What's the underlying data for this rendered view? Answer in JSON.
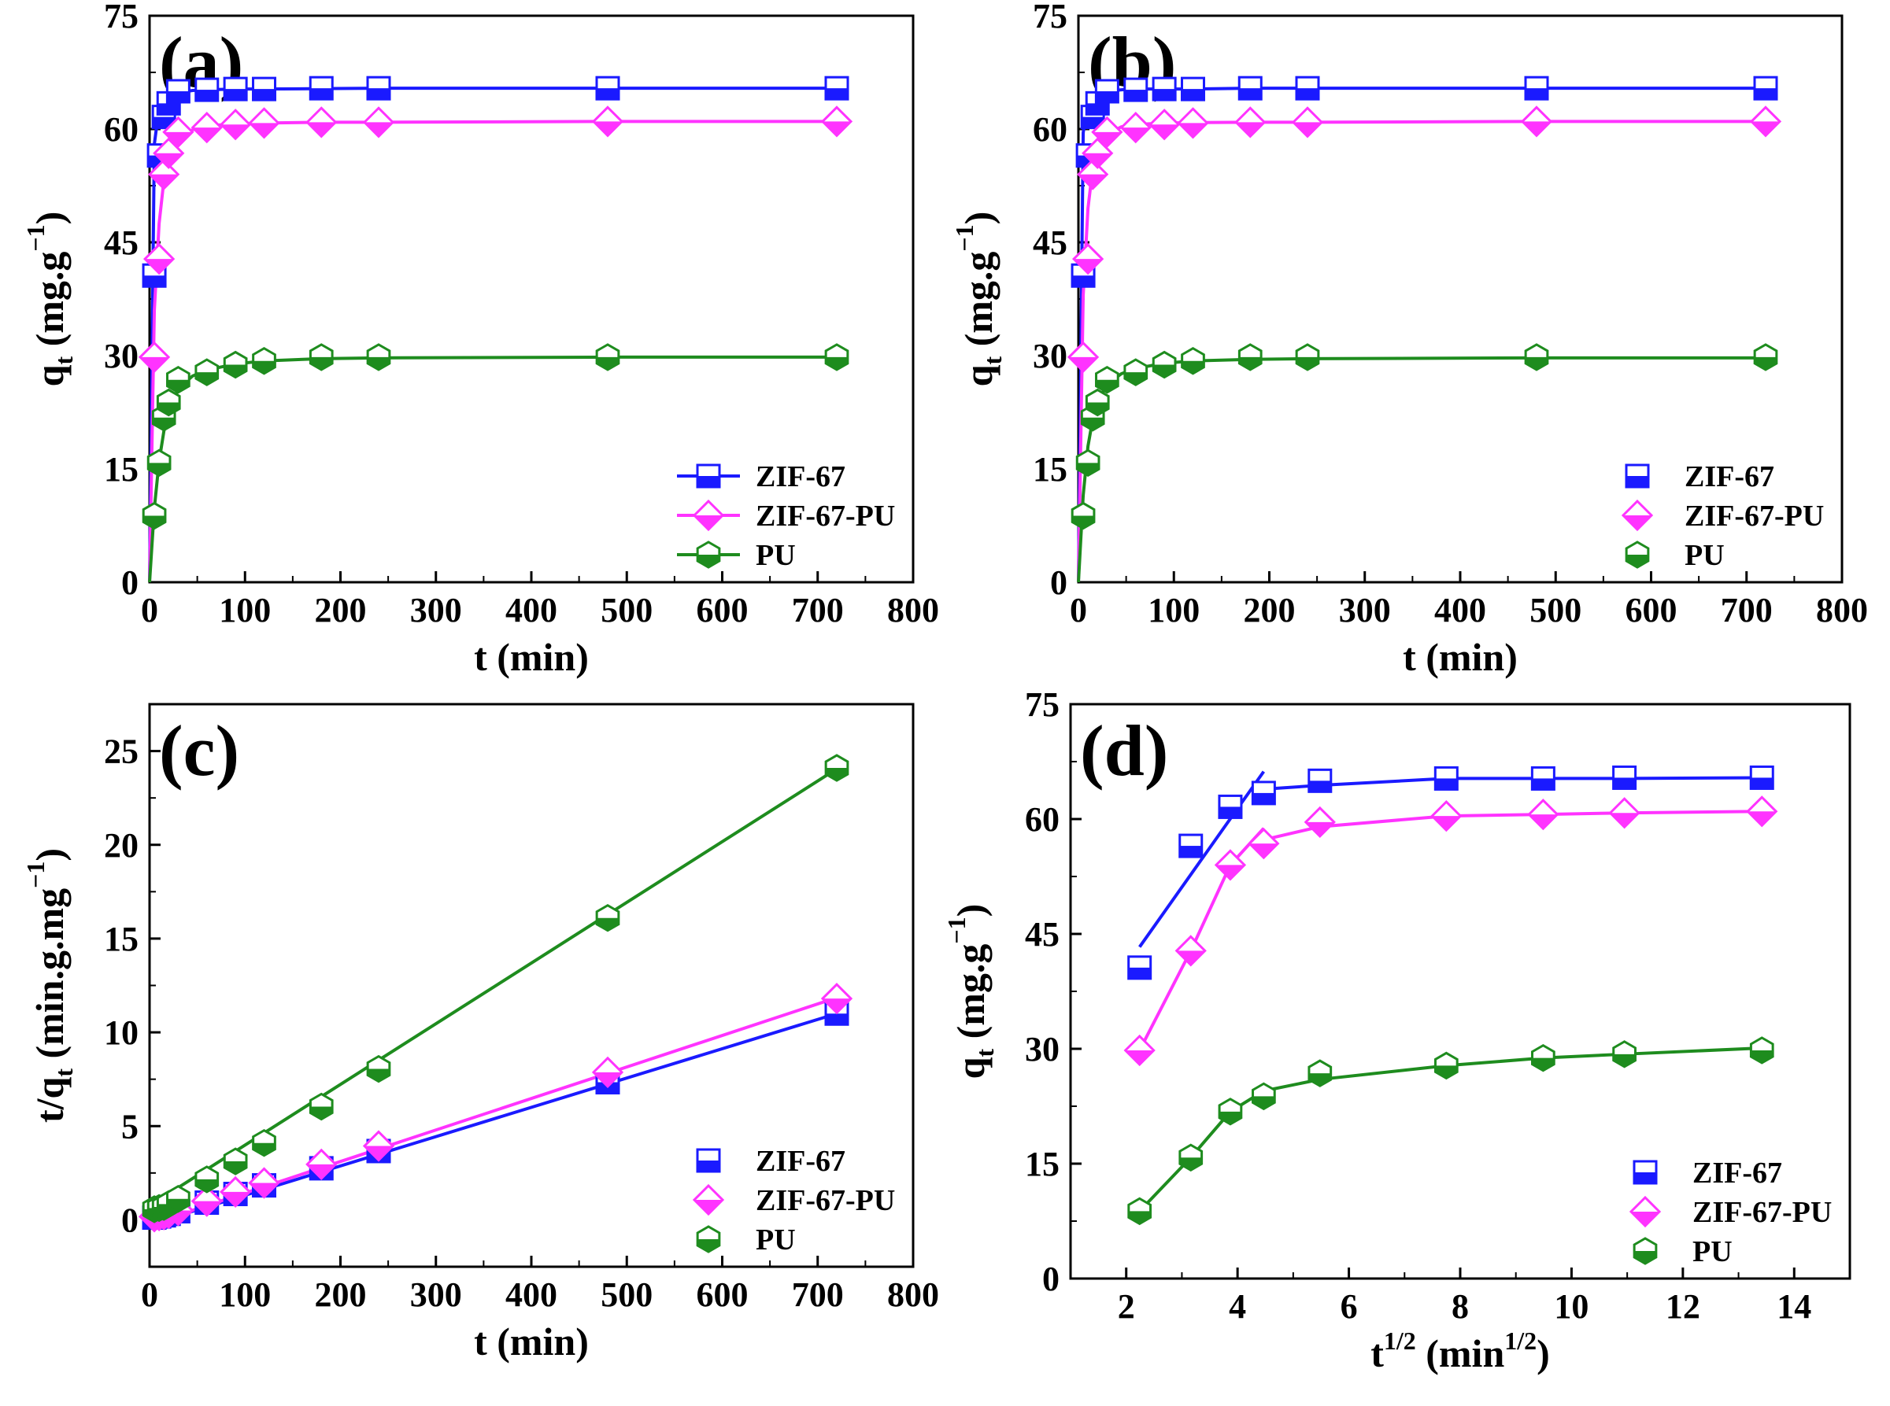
{
  "colors": {
    "ZIF-67": "#1a1aff",
    "ZIF-67-PU": "#ff33ff",
    "PU": "#1e8c1e"
  },
  "chart_data": [
    {
      "type": "line",
      "panel": "(a)",
      "xlabel": "t (min)",
      "ylabel": "q",
      "ylabel_sub": "t",
      "ylabel_unit": "(mg.g",
      "ylabel_sup": "−1",
      "ylabel_close": ")",
      "xlim": [
        0,
        800
      ],
      "ylim": [
        0,
        75
      ],
      "xticks": [
        0,
        100,
        200,
        300,
        400,
        500,
        600,
        700,
        800
      ],
      "xtick_labels": [
        "0",
        "100",
        "200",
        "300",
        "400",
        "500",
        "600",
        "700",
        "800"
      ],
      "yticks": [
        0,
        15,
        30,
        45,
        60,
        75
      ],
      "ytick_labels": [
        "0",
        "15",
        "30",
        "45",
        "60",
        "75"
      ],
      "legend": "bottom-right",
      "legend_lines": true,
      "series": [
        {
          "name": "ZIF-67",
          "marker": "square",
          "x": [
            5,
            10,
            15,
            20,
            30,
            60,
            90,
            120,
            180,
            240,
            480,
            720
          ],
          "y": [
            40.6,
            56.5,
            61.6,
            63.4,
            65.0,
            65.2,
            65.3,
            65.3,
            65.4,
            65.4,
            65.4,
            65.4
          ],
          "fit_x": [
            0,
            5,
            10,
            15,
            20,
            30,
            45,
            60,
            90,
            120,
            180,
            240,
            480,
            720
          ],
          "fit_y": [
            0,
            58.0,
            62.8,
            63.9,
            64.4,
            64.8,
            65.1,
            65.2,
            65.3,
            65.3,
            65.35,
            65.4,
            65.4,
            65.4
          ]
        },
        {
          "name": "ZIF-67-PU",
          "marker": "diamond",
          "x": [
            5,
            10,
            15,
            20,
            30,
            60,
            90,
            120,
            180,
            240,
            480,
            720
          ],
          "y": [
            29.8,
            42.8,
            54.0,
            56.8,
            59.6,
            60.2,
            60.6,
            60.8,
            60.9,
            60.9,
            61.0,
            61.0
          ],
          "fit_x": [
            0,
            5,
            10,
            15,
            20,
            30,
            45,
            60,
            90,
            120,
            180,
            240,
            480,
            720
          ],
          "fit_y": [
            0,
            36.0,
            47.5,
            53.2,
            56.2,
            58.7,
            59.9,
            60.4,
            60.7,
            60.8,
            60.9,
            60.9,
            61.0,
            61.0
          ]
        },
        {
          "name": "PU",
          "marker": "hexagon",
          "x": [
            5,
            10,
            15,
            20,
            30,
            60,
            90,
            120,
            180,
            240,
            480,
            720
          ],
          "y": [
            8.8,
            15.8,
            21.8,
            23.8,
            26.8,
            27.8,
            28.8,
            29.3,
            29.8,
            29.8,
            29.8,
            29.8
          ],
          "fit_x": [
            0,
            5,
            10,
            15,
            20,
            30,
            45,
            60,
            90,
            120,
            180,
            240,
            480,
            720
          ],
          "fit_y": [
            0,
            9.8,
            16.0,
            20.0,
            22.6,
            25.6,
            27.3,
            28.1,
            28.9,
            29.3,
            29.6,
            29.7,
            29.8,
            29.8
          ]
        }
      ]
    },
    {
      "type": "line",
      "panel": "(b)",
      "xlabel": "t (min)",
      "ylabel": "q",
      "ylabel_sub": "t",
      "ylabel_unit": "(mg.g",
      "ylabel_sup": "−1",
      "ylabel_close": ")",
      "xlim": [
        0,
        800
      ],
      "ylim": [
        0,
        75
      ],
      "xticks": [
        0,
        100,
        200,
        300,
        400,
        500,
        600,
        700,
        800
      ],
      "xtick_labels": [
        "0",
        "100",
        "200",
        "300",
        "400",
        "500",
        "600",
        "700",
        "800"
      ],
      "yticks": [
        0,
        15,
        30,
        45,
        60,
        75
      ],
      "ytick_labels": [
        "0",
        "15",
        "30",
        "45",
        "60",
        "75"
      ],
      "legend": "bottom-right",
      "legend_lines": false,
      "series": [
        {
          "name": "ZIF-67",
          "marker": "square",
          "x": [
            5,
            10,
            15,
            20,
            30,
            60,
            90,
            120,
            180,
            240,
            480,
            720
          ],
          "y": [
            40.6,
            56.5,
            61.6,
            63.4,
            65.0,
            65.2,
            65.3,
            65.3,
            65.4,
            65.4,
            65.4,
            65.4
          ],
          "fit_x": [
            0,
            5,
            10,
            15,
            20,
            30,
            45,
            60,
            90,
            120,
            180,
            240,
            480,
            720
          ],
          "fit_y": [
            0,
            59.5,
            63.6,
            64.4,
            64.8,
            65.0,
            65.2,
            65.3,
            65.3,
            65.3,
            65.4,
            65.4,
            65.4,
            65.4
          ]
        },
        {
          "name": "ZIF-67-PU",
          "marker": "diamond",
          "x": [
            5,
            10,
            15,
            20,
            30,
            60,
            90,
            120,
            180,
            240,
            480,
            720
          ],
          "y": [
            29.8,
            42.8,
            54.0,
            56.8,
            59.6,
            60.2,
            60.6,
            60.8,
            60.9,
            60.9,
            61.0,
            61.0
          ],
          "fit_x": [
            0,
            5,
            10,
            15,
            20,
            30,
            45,
            60,
            90,
            120,
            180,
            240,
            480,
            720
          ],
          "fit_y": [
            0,
            38.0,
            49.5,
            54.8,
            57.3,
            59.3,
            60.3,
            60.6,
            60.8,
            60.85,
            60.9,
            60.9,
            61.0,
            61.0
          ]
        },
        {
          "name": "PU",
          "marker": "hexagon",
          "x": [
            5,
            10,
            15,
            20,
            30,
            60,
            90,
            120,
            180,
            240,
            480,
            720
          ],
          "y": [
            8.8,
            15.8,
            21.8,
            23.8,
            26.8,
            27.8,
            28.8,
            29.3,
            29.8,
            29.8,
            29.8,
            29.8
          ],
          "fit_x": [
            0,
            5,
            10,
            15,
            20,
            30,
            45,
            60,
            90,
            120,
            180,
            240,
            480,
            720
          ],
          "fit_y": [
            0,
            11.5,
            18.0,
            21.6,
            23.8,
            26.2,
            27.6,
            28.3,
            29.0,
            29.3,
            29.5,
            29.6,
            29.7,
            29.7
          ]
        }
      ]
    },
    {
      "type": "line",
      "panel": "(c)",
      "xlabel": "t (min)",
      "ylabel": "t/q",
      "ylabel_sub": "t",
      "ylabel_unit": "(min.g.mg",
      "ylabel_sup": "−1",
      "ylabel_close": ")",
      "xlim": [
        0,
        800
      ],
      "ylim": [
        -2.5,
        27.5
      ],
      "xticks": [
        0,
        100,
        200,
        300,
        400,
        500,
        600,
        700,
        800
      ],
      "xtick_labels": [
        "0",
        "100",
        "200",
        "300",
        "400",
        "500",
        "600",
        "700",
        "800"
      ],
      "yticks": [
        0,
        5,
        10,
        15,
        20,
        25
      ],
      "ytick_labels": [
        "0",
        "5",
        "10",
        "15",
        "20",
        "25"
      ],
      "legend": "bottom-right",
      "legend_lines": false,
      "series": [
        {
          "name": "ZIF-67",
          "marker": "square",
          "x": [
            5,
            10,
            15,
            20,
            30,
            60,
            90,
            120,
            180,
            240,
            480,
            720
          ],
          "y": [
            0.12,
            0.18,
            0.24,
            0.32,
            0.46,
            0.92,
            1.38,
            1.84,
            2.75,
            3.67,
            7.34,
            11.0
          ],
          "fit_x": [
            0,
            720
          ],
          "fit_y": [
            -0.25,
            11.0
          ]
        },
        {
          "name": "ZIF-67-PU",
          "marker": "diamond",
          "x": [
            5,
            10,
            15,
            20,
            30,
            60,
            90,
            120,
            180,
            240,
            480,
            720
          ],
          "y": [
            0.17,
            0.23,
            0.28,
            0.35,
            0.5,
            1.0,
            1.49,
            1.97,
            2.96,
            3.94,
            7.87,
            11.8
          ],
          "fit_x": [
            0,
            720
          ],
          "fit_y": [
            -0.25,
            11.85
          ]
        },
        {
          "name": "PU",
          "marker": "hexagon",
          "x": [
            5,
            10,
            15,
            20,
            30,
            60,
            90,
            120,
            180,
            240,
            480,
            720
          ],
          "y": [
            0.57,
            0.63,
            0.69,
            0.84,
            1.12,
            2.16,
            3.12,
            4.1,
            6.04,
            8.05,
            16.1,
            24.1
          ],
          "fit_x": [
            0,
            720
          ],
          "fit_y": [
            0.75,
            24.05
          ]
        }
      ]
    },
    {
      "type": "line",
      "panel": "(d)",
      "xlabel": "t",
      "xlabel_sup": "1/2",
      "xlabel_unit": "(min",
      "xlabel_unit_sup": "1/2",
      "xlabel_close": ")",
      "ylabel": "q",
      "ylabel_sub": "t",
      "ylabel_unit": "(mg.g",
      "ylabel_sup": "−1",
      "ylabel_close": ")",
      "xlim": [
        1,
        15
      ],
      "ylim": [
        0,
        75
      ],
      "xticks": [
        2,
        4,
        6,
        8,
        10,
        12,
        14
      ],
      "xtick_labels": [
        "2",
        "4",
        "6",
        "8",
        "10",
        "12",
        "14"
      ],
      "yticks": [
        0,
        15,
        30,
        45,
        60,
        75
      ],
      "ytick_labels": [
        "0",
        "15",
        "30",
        "45",
        "60",
        "75"
      ],
      "legend": "bottom-right",
      "legend_lines": false,
      "series": [
        {
          "name": "ZIF-67",
          "marker": "square",
          "x": [
            2.24,
            3.16,
            3.87,
            4.47,
            5.48,
            7.75,
            9.49,
            10.95,
            13.42
          ],
          "y": [
            40.6,
            56.5,
            61.6,
            63.4,
            65.0,
            65.3,
            65.3,
            65.4,
            65.4
          ],
          "fit_segments": [
            [
              [
                2.24,
                43.3
              ],
              [
                4.47,
                66.2
              ]
            ],
            [
              [
                4.47,
                63.9
              ],
              [
                5.48,
                64.4
              ],
              [
                7.75,
                65.3
              ],
              [
                9.49,
                65.3
              ],
              [
                10.95,
                65.3
              ],
              [
                13.42,
                65.4
              ]
            ]
          ]
        },
        {
          "name": "ZIF-67-PU",
          "marker": "diamond",
          "x": [
            2.24,
            3.16,
            3.87,
            4.47,
            5.48,
            7.75,
            9.49,
            10.95,
            13.42
          ],
          "y": [
            29.8,
            42.8,
            54.0,
            56.8,
            59.6,
            60.4,
            60.6,
            60.8,
            61.0
          ],
          "fit_segments": [
            [
              [
                2.24,
                29.8
              ],
              [
                3.16,
                42.8
              ],
              [
                3.87,
                54.0
              ],
              [
                4.47,
                58.8
              ]
            ],
            [
              [
                4.47,
                57.3
              ],
              [
                5.48,
                59.0
              ],
              [
                7.75,
                60.4
              ],
              [
                9.49,
                60.6
              ],
              [
                10.95,
                60.8
              ],
              [
                13.42,
                61.0
              ]
            ]
          ]
        },
        {
          "name": "PU",
          "marker": "hexagon",
          "x": [
            2.24,
            3.16,
            3.87,
            4.47,
            5.48,
            7.75,
            9.49,
            10.95,
            13.42
          ],
          "y": [
            8.8,
            15.8,
            21.8,
            23.8,
            26.8,
            27.8,
            28.8,
            29.3,
            29.8
          ],
          "fit_segments": [
            [
              [
                2.24,
                8.8
              ],
              [
                3.16,
                15.8
              ],
              [
                3.87,
                21.8
              ],
              [
                4.47,
                24.5
              ],
              [
                5.48,
                26.0
              ],
              [
                7.75,
                27.8
              ],
              [
                9.49,
                28.8
              ],
              [
                10.95,
                29.3
              ],
              [
                13.42,
                30.1
              ]
            ]
          ]
        }
      ]
    }
  ]
}
